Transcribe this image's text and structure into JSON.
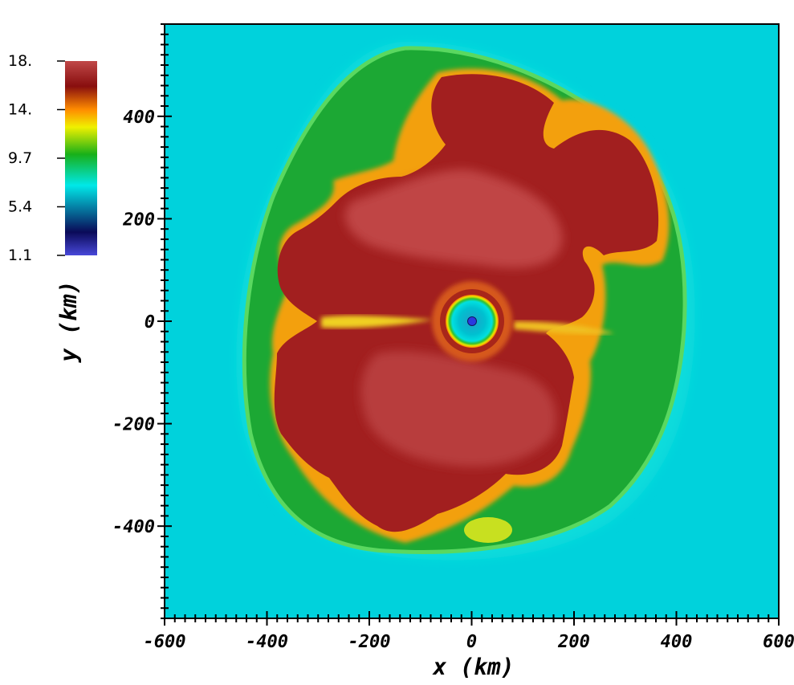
{
  "chart_data": {
    "type": "heatmap",
    "title": "",
    "xlabel": "x  (km)",
    "ylabel": "y  (km)",
    "xlim": [
      -600,
      600
    ],
    "ylim": [
      -580,
      580
    ],
    "x_ticks": [
      "-600",
      "-400",
      "-200",
      "0",
      "200",
      "400",
      "600"
    ],
    "y_ticks": [
      "400",
      "200",
      "0",
      "-200",
      "-400"
    ],
    "colorbar": {
      "min": 1.1,
      "max": 18,
      "tick_labels": [
        "18.",
        "14.",
        "9.7",
        "5.4",
        "1.1"
      ],
      "colors": [
        "#4848d8",
        "#0a0a58",
        "#00e8e8",
        "#18b018",
        "#f0f000",
        "#ff8c00",
        "#880e0e",
        "#c04848"
      ]
    },
    "background_color": "#00d2dc",
    "shock_radius_km": [
      -470,
      470
    ]
  }
}
